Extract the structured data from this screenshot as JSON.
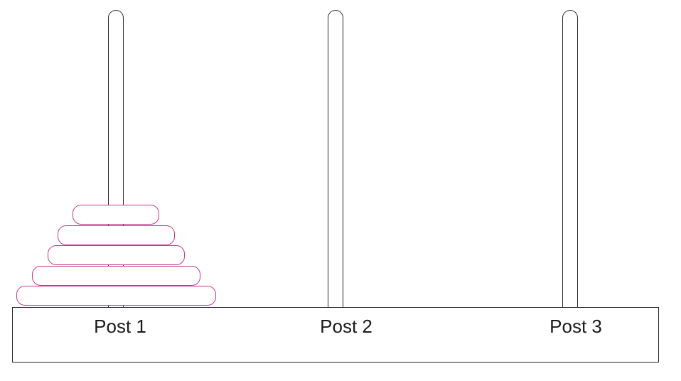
{
  "diagram": {
    "posts": [
      {
        "label": "Post 1",
        "disks": 5
      },
      {
        "label": "Post 2",
        "disks": 0
      },
      {
        "label": "Post 3",
        "disks": 0
      }
    ],
    "colors": {
      "disk_stroke": "#c8378f",
      "line": "#2a2a2a",
      "background": "#ffffff"
    }
  }
}
